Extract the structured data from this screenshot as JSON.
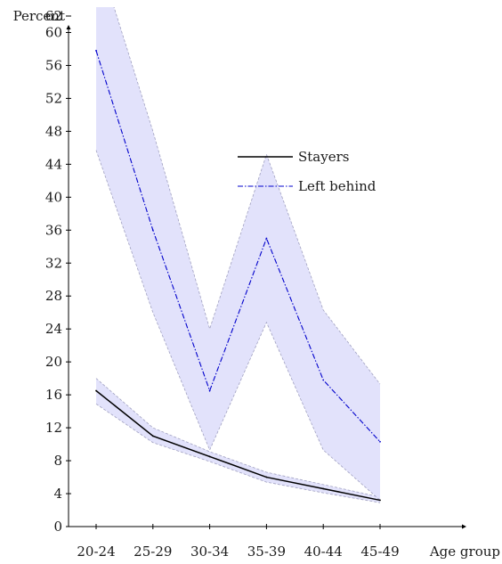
{
  "chart_data": {
    "type": "line",
    "title": "",
    "xlabel": "Age group",
    "ylabel": "Percent",
    "categories": [
      "20-24",
      "25-29",
      "30-34",
      "35-39",
      "40-44",
      "45-49"
    ],
    "yticks": [
      0,
      4,
      8,
      12,
      16,
      20,
      24,
      28,
      32,
      36,
      40,
      44,
      48,
      52,
      56,
      60,
      62
    ],
    "ylim": [
      0,
      64.5
    ],
    "grid": false,
    "legend_position": "center",
    "series": [
      {
        "name": "Stayers",
        "style": "solid",
        "color": "#000000",
        "values": [
          16.5,
          11.0,
          8.5,
          6.0,
          4.6,
          3.2
        ],
        "ci_lower": [
          14.9,
          10.2,
          7.9,
          5.4,
          4.1,
          2.9
        ],
        "ci_upper": [
          18.0,
          12.0,
          9.1,
          6.6,
          5.1,
          3.6
        ]
      },
      {
        "name": "Left behind",
        "style": "dashdot",
        "color": "#0000cc",
        "values": [
          57.8,
          36.0,
          16.5,
          35.0,
          17.8,
          10.3
        ],
        "ci_lower": [
          45.7,
          26.0,
          9.3,
          24.8,
          9.3,
          3.2
        ],
        "ci_upper": [
          70.0,
          48.0,
          24.0,
          45.2,
          26.3,
          17.3
        ]
      }
    ],
    "band_fill_color": "#e2e2fb",
    "band_edge_color": "#a0a0c0"
  }
}
